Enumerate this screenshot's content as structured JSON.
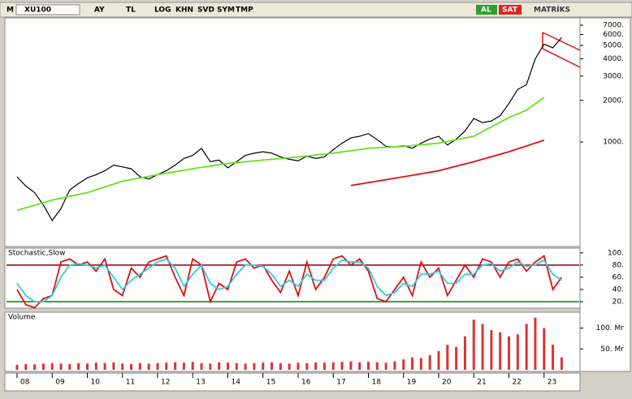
{
  "toolbar": {
    "logo": "M",
    "symbol": "XU100",
    "buttons": [
      "AY",
      "TL",
      "LOG",
      "KHN",
      "SVD",
      "SYM",
      "TMP"
    ],
    "buy": "AL",
    "sell": "SAT",
    "brand": "MATRİKS"
  },
  "chart_data": [
    {
      "type": "line",
      "ylog": true,
      "xlim": [
        7.7,
        24.0
      ],
      "ylim": [
        180,
        7700
      ],
      "yticks": [
        {
          "value": 1000,
          "label": "1000."
        },
        {
          "value": 2000,
          "label": "2000."
        },
        {
          "value": 3000,
          "label": "3000."
        },
        {
          "value": 4000,
          "label": "4000."
        },
        {
          "value": 5000,
          "label": "5000."
        },
        {
          "value": 6000,
          "label": "6000."
        },
        {
          "value": 7000,
          "label": "7000."
        }
      ],
      "series": [
        {
          "color": "#000000",
          "x": [
            8,
            8.25,
            8.5,
            8.75,
            9,
            9.25,
            9.5,
            9.75,
            10,
            10.25,
            10.5,
            10.75,
            11,
            11.25,
            11.5,
            11.75,
            12,
            12.25,
            12.5,
            12.75,
            13,
            13.25,
            13.5,
            13.75,
            14,
            14.25,
            14.5,
            14.75,
            15,
            15.25,
            15.5,
            15.75,
            16,
            16.25,
            16.5,
            16.75,
            17,
            17.25,
            17.5,
            17.75,
            18,
            18.25,
            18.5,
            18.75,
            19,
            19.25,
            19.5,
            19.75,
            20,
            20.25,
            20.5,
            20.75,
            21,
            21.25,
            21.5,
            21.75,
            22,
            22.25,
            22.5,
            22.75,
            23,
            23.25,
            23.5
          ],
          "values": [
            560,
            480,
            430,
            350,
            270,
            330,
            450,
            500,
            550,
            580,
            620,
            680,
            660,
            640,
            560,
            540,
            580,
            620,
            680,
            760,
            800,
            900,
            720,
            740,
            650,
            720,
            800,
            830,
            850,
            830,
            780,
            750,
            730,
            790,
            760,
            780,
            880,
            980,
            1070,
            1100,
            1150,
            1040,
            930,
            920,
            940,
            900,
            980,
            1050,
            1100,
            950,
            1050,
            1200,
            1480,
            1380,
            1420,
            1550,
            1900,
            2400,
            2600,
            4000,
            5100,
            4800,
            5700
          ]
        },
        {
          "color": "#66e020",
          "x": [
            8,
            9,
            10,
            11,
            12,
            13,
            14,
            15,
            16,
            17,
            18,
            19,
            20,
            21,
            22,
            22.5,
            23
          ],
          "values": [
            320,
            380,
            430,
            520,
            580,
            640,
            700,
            740,
            780,
            830,
            900,
            930,
            980,
            1100,
            1500,
            1700,
            2100
          ]
        },
        {
          "color": "#dd1111",
          "x": [
            17.5,
            19,
            20,
            21,
            22,
            23
          ],
          "values": [
            484,
            560,
            620,
            720,
            850,
            1030
          ]
        }
      ]
    },
    {
      "type": "line",
      "title": "Stochastic,Slow",
      "xlim": [
        7.7,
        24.0
      ],
      "ylim": [
        12,
        105
      ],
      "yticks": [
        {
          "value": 20,
          "label": "20."
        },
        {
          "value": 40,
          "label": "40."
        },
        {
          "value": 60,
          "label": "60."
        },
        {
          "value": 80,
          "label": "80."
        },
        {
          "value": 100,
          "label": "100."
        }
      ],
      "reference_lines": [
        {
          "value": 80,
          "color": "#8b0000"
        },
        {
          "value": 20,
          "color": "#008000"
        }
      ],
      "series": [
        {
          "color": "#dd1111",
          "x": [
            8,
            8.25,
            8.5,
            8.75,
            9,
            9.25,
            9.5,
            9.75,
            10,
            10.25,
            10.5,
            10.75,
            11,
            11.25,
            11.5,
            11.75,
            12,
            12.25,
            12.5,
            12.75,
            13,
            13.25,
            13.5,
            13.75,
            14,
            14.25,
            14.5,
            14.75,
            15,
            15.25,
            15.5,
            15.75,
            16,
            16.25,
            16.5,
            16.75,
            17,
            17.25,
            17.5,
            17.75,
            18,
            18.25,
            18.5,
            18.75,
            19,
            19.25,
            19.5,
            19.75,
            20,
            20.25,
            20.5,
            20.75,
            21,
            21.25,
            21.5,
            21.75,
            22,
            22.25,
            22.5,
            22.75,
            23,
            23.25,
            23.5
          ],
          "values": [
            40,
            15,
            10,
            25,
            30,
            85,
            90,
            80,
            85,
            70,
            90,
            40,
            30,
            75,
            60,
            85,
            90,
            95,
            60,
            30,
            90,
            80,
            20,
            50,
            40,
            85,
            90,
            75,
            80,
            55,
            35,
            70,
            30,
            85,
            40,
            60,
            90,
            95,
            80,
            90,
            70,
            25,
            20,
            40,
            60,
            30,
            85,
            60,
            75,
            30,
            55,
            80,
            60,
            90,
            85,
            60,
            85,
            90,
            70,
            85,
            95,
            40,
            60
          ]
        },
        {
          "color": "#33ccdd",
          "x": [
            8,
            8.25,
            8.5,
            8.75,
            9,
            9.25,
            9.5,
            9.75,
            10,
            10.25,
            10.5,
            10.75,
            11,
            11.25,
            11.5,
            11.75,
            12,
            12.25,
            12.5,
            12.75,
            13,
            13.25,
            13.5,
            13.75,
            14,
            14.25,
            14.5,
            14.75,
            15,
            15.25,
            15.5,
            15.75,
            16,
            16.25,
            16.5,
            16.75,
            17,
            17.25,
            17.5,
            17.75,
            18,
            18.25,
            18.5,
            18.75,
            19,
            19.25,
            19.5,
            19.75,
            20,
            20.25,
            20.5,
            20.75,
            21,
            21.25,
            21.5,
            21.75,
            22,
            22.25,
            22.5,
            22.75,
            23,
            23.25,
            23.5
          ],
          "values": [
            50,
            30,
            20,
            20,
            30,
            60,
            80,
            82,
            80,
            75,
            80,
            60,
            40,
            55,
            65,
            75,
            85,
            90,
            75,
            45,
            65,
            80,
            50,
            40,
            45,
            65,
            80,
            80,
            78,
            65,
            45,
            55,
            45,
            65,
            55,
            55,
            75,
            88,
            85,
            85,
            75,
            45,
            30,
            35,
            50,
            45,
            65,
            65,
            70,
            50,
            50,
            65,
            65,
            80,
            82,
            70,
            75,
            85,
            78,
            80,
            88,
            65,
            55
          ]
        }
      ]
    },
    {
      "type": "bar",
      "title": "Volume",
      "xlim": [
        7.7,
        24.0
      ],
      "ylim": [
        0,
        134
      ],
      "yticks": [
        {
          "value": 50,
          "label": "50. Mr"
        },
        {
          "value": 100,
          "label": "100. Mr"
        }
      ],
      "xticks": [
        {
          "value": 8,
          "label": "08"
        },
        {
          "value": 9,
          "label": "09"
        },
        10,
        11,
        12,
        13,
        14,
        15,
        16,
        17,
        18,
        19,
        20,
        21,
        22,
        23
      ],
      "series": [
        {
          "color": "#dd3333",
          "x": [
            8,
            8.25,
            8.5,
            8.75,
            9,
            9.25,
            9.5,
            9.75,
            10,
            10.25,
            10.5,
            10.75,
            11,
            11.25,
            11.5,
            11.75,
            12,
            12.25,
            12.5,
            12.75,
            13,
            13.25,
            13.5,
            13.75,
            14,
            14.25,
            14.5,
            14.75,
            15,
            15.25,
            15.5,
            15.75,
            16,
            16.25,
            16.5,
            16.75,
            17,
            17.25,
            17.5,
            17.75,
            18,
            18.25,
            18.5,
            18.75,
            19,
            19.25,
            19.5,
            19.75,
            20,
            20.25,
            20.5,
            20.75,
            21,
            21.25,
            21.5,
            21.75,
            22,
            22.25,
            22.5,
            22.75,
            23,
            23.25,
            23.5
          ],
          "values": [
            12,
            14,
            13,
            15,
            16,
            15,
            14,
            16,
            15,
            17,
            16,
            18,
            15,
            14,
            16,
            15,
            16,
            17,
            18,
            17,
            19,
            16,
            15,
            18,
            17,
            16,
            15,
            16,
            17,
            18,
            16,
            15,
            17,
            16,
            18,
            17,
            18,
            19,
            20,
            18,
            19,
            18,
            17,
            20,
            25,
            30,
            28,
            35,
            45,
            60,
            55,
            80,
            120,
            110,
            95,
            90,
            80,
            85,
            110,
            125,
            100,
            60,
            30
          ]
        }
      ]
    }
  ]
}
